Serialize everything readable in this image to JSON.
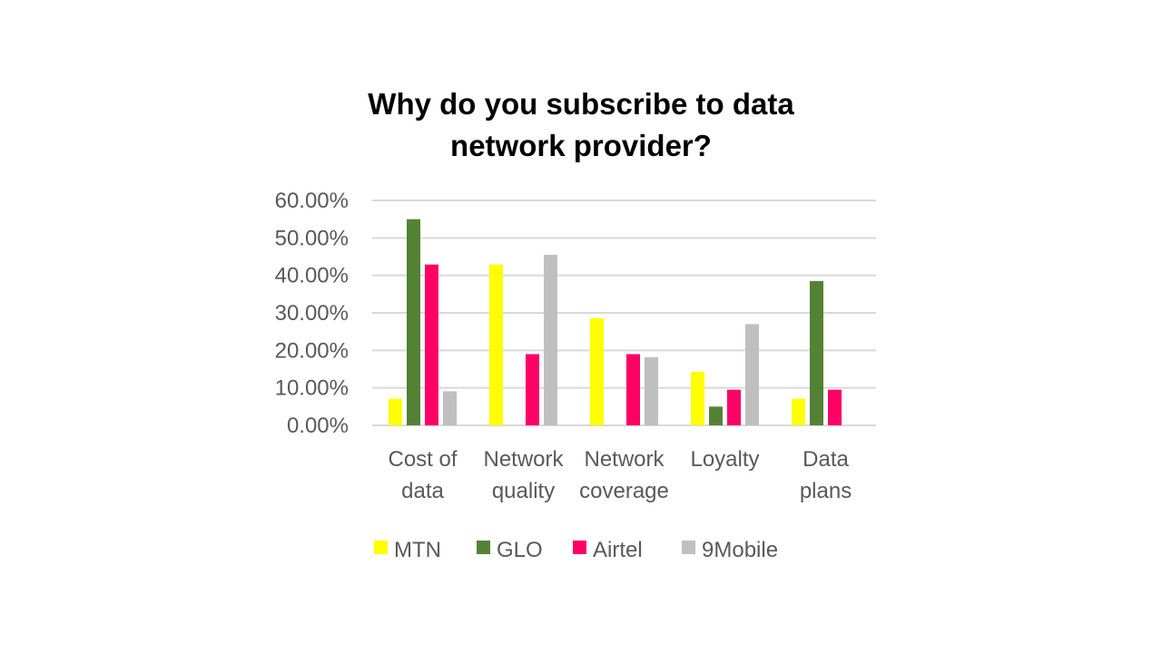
{
  "chart_data": {
    "type": "bar",
    "title": "Why do you subscribe to data network provider?",
    "categories": [
      [
        "Cost of",
        "data"
      ],
      [
        "Network",
        "quality"
      ],
      [
        "Network",
        "coverage"
      ],
      [
        "Loyalty"
      ],
      [
        "Data",
        "plans"
      ]
    ],
    "series": [
      {
        "name": "MTN",
        "color": "#FFFF00",
        "values": [
          7.1,
          42.9,
          28.6,
          14.3,
          7.1
        ]
      },
      {
        "name": "GLO",
        "color": "#548235",
        "values": [
          55.0,
          0,
          0,
          5.0,
          38.5
        ]
      },
      {
        "name": "Airtel",
        "color": "#FF0066",
        "values": [
          42.9,
          19.0,
          19.0,
          9.5,
          9.5
        ]
      },
      {
        "name": "9Mobile",
        "color": "#BFBFBF",
        "values": [
          9.1,
          45.5,
          18.2,
          27.0,
          0
        ]
      }
    ],
    "yticks": [
      "0.00%",
      "10.00%",
      "20.00%",
      "30.00%",
      "40.00%",
      "50.00%",
      "60.00%"
    ],
    "ylim": [
      0,
      60
    ],
    "grid": true,
    "legend_position": "bottom"
  }
}
